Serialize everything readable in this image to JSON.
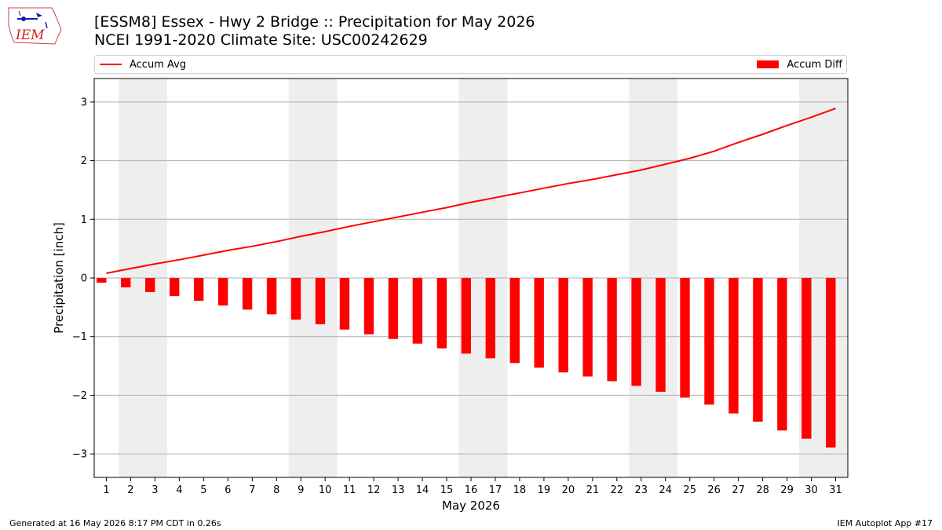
{
  "header": {
    "title_line1": "[ESSM8] Essex - Hwy 2 Bridge :: Precipitation for May 2026",
    "title_line2": "NCEI 1991-2020 Climate Site: USC00242629"
  },
  "logo": {
    "text": "IEM",
    "icon": "iem-logo-icon"
  },
  "legend": {
    "line_label": "Accum Avg",
    "bar_label": "Accum Diff",
    "placement": "top"
  },
  "footer": {
    "left": "Generated at 16 May 2026 8:17 PM CDT in 0.26s",
    "right": "IEM Autoplot App #17"
  },
  "colors": {
    "series": "#ff0000",
    "weekend_shade": "#eeeeee",
    "grid": "#b0b0b0"
  },
  "chart_data": {
    "type": "bar",
    "title": "[ESSM8] Essex - Hwy 2 Bridge :: Precipitation for May 2026",
    "subtitle": "NCEI 1991-2020 Climate Site: USC00242629",
    "xlabel": "May 2026",
    "ylabel": "Precipitation [inch]",
    "ylim": [
      -3.4,
      3.4
    ],
    "yticks": [
      -3,
      -2,
      -1,
      0,
      1,
      2,
      3
    ],
    "ytick_labels": [
      "−3",
      "−2",
      "−1",
      "0",
      "1",
      "2",
      "3"
    ],
    "grid": "horizontal",
    "categories": [
      "1",
      "2",
      "3",
      "4",
      "5",
      "6",
      "7",
      "8",
      "9",
      "10",
      "11",
      "12",
      "13",
      "14",
      "15",
      "16",
      "17",
      "18",
      "19",
      "20",
      "21",
      "22",
      "23",
      "24",
      "25",
      "26",
      "27",
      "28",
      "29",
      "30",
      "31"
    ],
    "shaded_days": [
      [
        "2",
        "3"
      ],
      [
        "9",
        "10"
      ],
      [
        "16",
        "17"
      ],
      [
        "23",
        "24"
      ],
      [
        "30",
        "31"
      ]
    ],
    "series": [
      {
        "name": "Accum Avg",
        "kind": "line",
        "values": [
          0.08,
          0.16,
          0.24,
          0.31,
          0.39,
          0.47,
          0.54,
          0.62,
          0.71,
          0.79,
          0.88,
          0.96,
          1.04,
          1.12,
          1.2,
          1.29,
          1.37,
          1.45,
          1.53,
          1.61,
          1.68,
          1.76,
          1.84,
          1.94,
          2.04,
          2.16,
          2.31,
          2.45,
          2.6,
          2.74,
          2.89
        ]
      },
      {
        "name": "Accum Diff",
        "kind": "bar",
        "values": [
          -0.08,
          -0.16,
          -0.24,
          -0.31,
          -0.39,
          -0.47,
          -0.54,
          -0.62,
          -0.71,
          -0.79,
          -0.88,
          -0.96,
          -1.04,
          -1.12,
          -1.2,
          -1.29,
          -1.37,
          -1.45,
          -1.53,
          -1.61,
          -1.68,
          -1.76,
          -1.84,
          -1.94,
          -2.04,
          -2.16,
          -2.31,
          -2.45,
          -2.6,
          -2.74,
          -2.89
        ]
      }
    ]
  }
}
